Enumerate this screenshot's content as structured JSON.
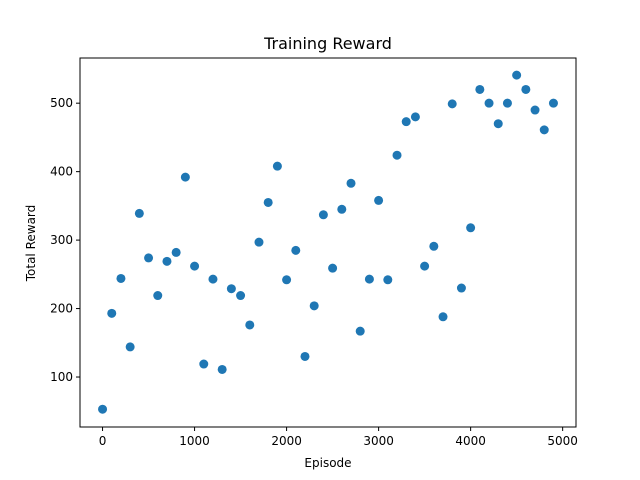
{
  "chart_data": {
    "type": "scatter",
    "title": "Training Reward",
    "xlabel": "Episode",
    "ylabel": "Total Reward",
    "xlim": [
      -245,
      5145
    ],
    "ylim": [
      27,
      566
    ],
    "xticks": [
      0,
      1000,
      2000,
      3000,
      4000,
      5000
    ],
    "yticks": [
      100,
      200,
      300,
      400,
      500
    ],
    "grid": false,
    "marker_color": "#1f77b4",
    "points": [
      {
        "x": 0,
        "y": 53
      },
      {
        "x": 100,
        "y": 193
      },
      {
        "x": 200,
        "y": 244
      },
      {
        "x": 300,
        "y": 144
      },
      {
        "x": 400,
        "y": 339
      },
      {
        "x": 500,
        "y": 274
      },
      {
        "x": 600,
        "y": 219
      },
      {
        "x": 700,
        "y": 269
      },
      {
        "x": 800,
        "y": 282
      },
      {
        "x": 900,
        "y": 392
      },
      {
        "x": 1000,
        "y": 262
      },
      {
        "x": 1100,
        "y": 119
      },
      {
        "x": 1200,
        "y": 243
      },
      {
        "x": 1300,
        "y": 111
      },
      {
        "x": 1400,
        "y": 229
      },
      {
        "x": 1500,
        "y": 219
      },
      {
        "x": 1600,
        "y": 176
      },
      {
        "x": 1700,
        "y": 297
      },
      {
        "x": 1800,
        "y": 355
      },
      {
        "x": 1900,
        "y": 408
      },
      {
        "x": 2000,
        "y": 242
      },
      {
        "x": 2100,
        "y": 285
      },
      {
        "x": 2200,
        "y": 130
      },
      {
        "x": 2300,
        "y": 204
      },
      {
        "x": 2400,
        "y": 337
      },
      {
        "x": 2500,
        "y": 259
      },
      {
        "x": 2600,
        "y": 345
      },
      {
        "x": 2700,
        "y": 383
      },
      {
        "x": 2800,
        "y": 167
      },
      {
        "x": 2900,
        "y": 243
      },
      {
        "x": 3000,
        "y": 358
      },
      {
        "x": 3100,
        "y": 242
      },
      {
        "x": 3200,
        "y": 424
      },
      {
        "x": 3300,
        "y": 473
      },
      {
        "x": 3400,
        "y": 480
      },
      {
        "x": 3500,
        "y": 262
      },
      {
        "x": 3600,
        "y": 291
      },
      {
        "x": 3700,
        "y": 188
      },
      {
        "x": 3800,
        "y": 499
      },
      {
        "x": 3900,
        "y": 230
      },
      {
        "x": 4000,
        "y": 318
      },
      {
        "x": 4100,
        "y": 520
      },
      {
        "x": 4200,
        "y": 500
      },
      {
        "x": 4300,
        "y": 470
      },
      {
        "x": 4400,
        "y": 500
      },
      {
        "x": 4500,
        "y": 541
      },
      {
        "x": 4600,
        "y": 520
      },
      {
        "x": 4700,
        "y": 490
      },
      {
        "x": 4800,
        "y": 461
      },
      {
        "x": 4900,
        "y": 500
      }
    ]
  }
}
